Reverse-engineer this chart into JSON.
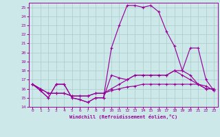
{
  "xlabel": "Windchill (Refroidissement éolien,°C)",
  "bg_color": "#cce8e8",
  "line_color": "#990099",
  "grid_color": "#aacccc",
  "xlim": [
    -0.5,
    23.5
  ],
  "ylim": [
    14,
    25.5
  ],
  "xticks": [
    0,
    1,
    2,
    3,
    4,
    5,
    6,
    7,
    8,
    9,
    10,
    11,
    12,
    13,
    14,
    15,
    16,
    17,
    18,
    19,
    20,
    21,
    22,
    23
  ],
  "yticks": [
    14,
    15,
    16,
    17,
    18,
    19,
    20,
    21,
    22,
    23,
    24,
    25
  ],
  "line1_x": [
    0,
    1,
    2,
    3,
    4,
    5,
    6,
    7,
    8,
    9,
    10,
    11,
    12,
    13,
    14,
    15,
    16,
    17,
    18,
    19,
    20,
    21,
    22,
    23
  ],
  "line1_y": [
    16.5,
    15.8,
    15.0,
    16.5,
    16.5,
    15.0,
    14.8,
    14.5,
    15.0,
    15.0,
    17.5,
    17.2,
    17.0,
    17.5,
    17.5,
    17.5,
    17.5,
    17.5,
    18.0,
    17.5,
    17.0,
    16.5,
    16.0,
    16.0
  ],
  "line2_x": [
    0,
    1,
    2,
    3,
    4,
    5,
    6,
    7,
    8,
    9,
    10,
    11,
    12,
    13,
    14,
    15,
    16,
    17,
    18,
    19,
    20,
    21,
    22,
    23
  ],
  "line2_y": [
    16.5,
    15.8,
    15.0,
    16.5,
    16.5,
    15.0,
    14.8,
    14.5,
    15.0,
    15.0,
    20.5,
    23.0,
    25.2,
    25.2,
    25.0,
    25.2,
    24.5,
    22.3,
    20.7,
    18.0,
    17.5,
    16.5,
    16.0,
    16.0
  ],
  "line3_x": [
    0,
    1,
    2,
    3,
    4,
    5,
    6,
    7,
    8,
    9,
    10,
    11,
    12,
    13,
    14,
    15,
    16,
    17,
    18,
    19,
    20,
    21,
    22,
    23
  ],
  "line3_y": [
    16.5,
    16.0,
    15.5,
    15.5,
    15.5,
    15.2,
    15.2,
    15.2,
    15.5,
    15.5,
    16.0,
    16.5,
    17.0,
    17.5,
    17.5,
    17.5,
    17.5,
    17.5,
    18.0,
    18.0,
    20.5,
    20.5,
    17.0,
    15.8
  ],
  "line4_x": [
    0,
    1,
    2,
    3,
    4,
    5,
    6,
    7,
    8,
    9,
    10,
    11,
    12,
    13,
    14,
    15,
    16,
    17,
    18,
    19,
    20,
    21,
    22,
    23
  ],
  "line4_y": [
    16.5,
    16.0,
    15.5,
    15.5,
    15.5,
    15.2,
    15.2,
    15.2,
    15.5,
    15.5,
    15.8,
    16.0,
    16.2,
    16.3,
    16.5,
    16.5,
    16.5,
    16.5,
    16.5,
    16.5,
    16.5,
    16.5,
    16.3,
    15.8
  ]
}
